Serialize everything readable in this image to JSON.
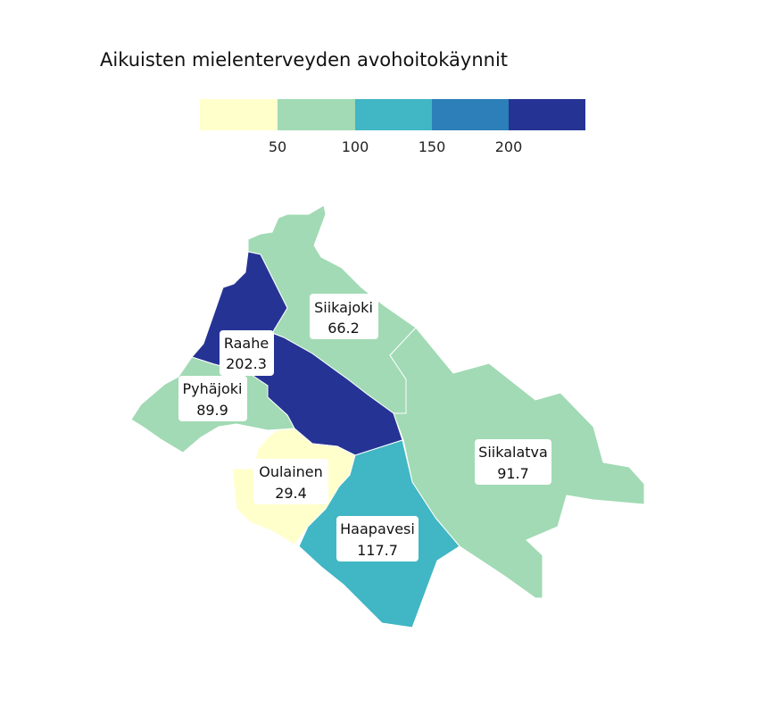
{
  "title": "Aikuisten mielenterveyden avohoitokäynnit",
  "legend": {
    "breaks": [
      50,
      100,
      150,
      200
    ],
    "tick_labels": [
      "50",
      "100",
      "150",
      "200"
    ],
    "colors": [
      "#ffffcc",
      "#a1dab4",
      "#41b6c4",
      "#2c7fb8",
      "#253494"
    ]
  },
  "regions": [
    {
      "name": "Siikajoki",
      "value": "66.2",
      "color": "#a1dab4"
    },
    {
      "name": "Raahe",
      "value": "202.3",
      "color": "#253494"
    },
    {
      "name": "Pyhäjoki",
      "value": "89.9",
      "color": "#a1dab4"
    },
    {
      "name": "Siikalatva",
      "value": "91.7",
      "color": "#a1dab4"
    },
    {
      "name": "Oulainen",
      "value": "29.4",
      "color": "#ffffcc"
    },
    {
      "name": "Haapavesi",
      "value": "117.7",
      "color": "#41b6c4"
    }
  ]
}
